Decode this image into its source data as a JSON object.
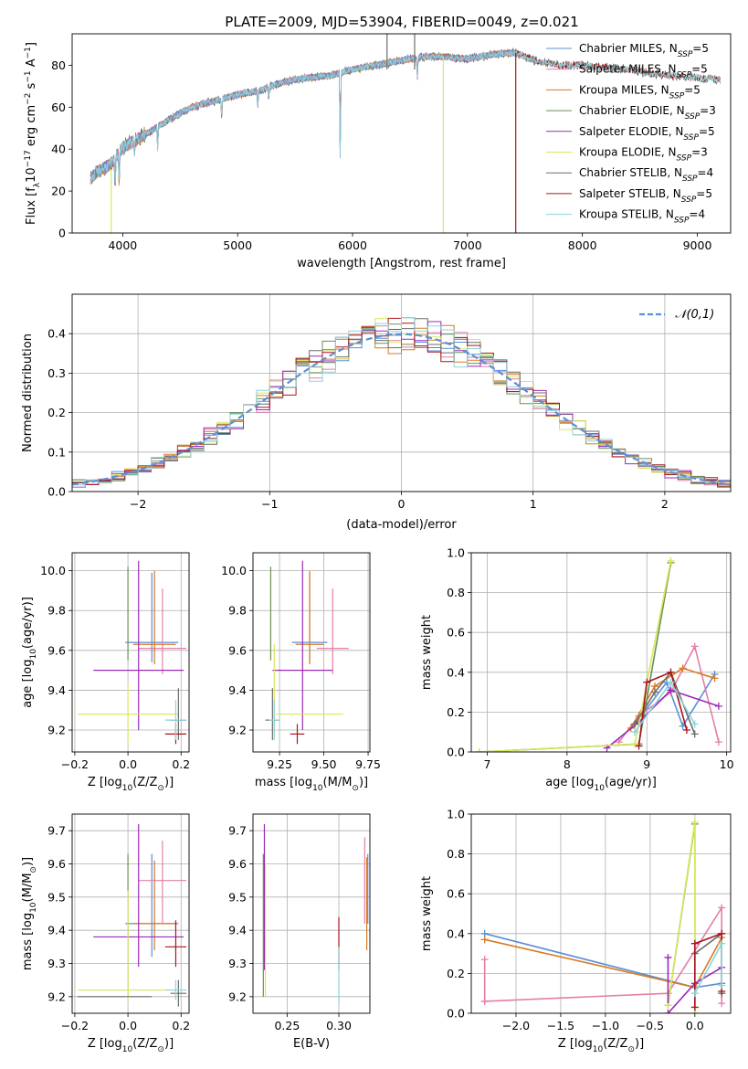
{
  "figure_title": "PLATE=2009, MJD=53904, FIBERID=0049, z=0.021",
  "colors": {
    "Chabrier MILES": "#5b8fd6",
    "Salpeter MILES": "#e47ea8",
    "Kroupa MILES": "#d67a25",
    "Chabrier ELODIE": "#6d8f56",
    "Salpeter ELODIE": "#9a2bb5",
    "Kroupa ELODIE": "#d7e85a",
    "Chabrier STELIB": "#6c6c6c",
    "Salpeter STELIB": "#a8161c",
    "Kroupa STELIB": "#8dd3da"
  },
  "chart_data": [
    {
      "id": "spectrum",
      "type": "line",
      "xlabel": "wavelength [Angstrom, rest frame]",
      "ylabel": "Flux [f$_\\lambda$10$^{-17}$ erg cm$^{-2}$ s$^{-1}$ A$^{-1}$]",
      "ylabel_parts": [
        "Flux [f",
        "λ",
        "10",
        "−17",
        " erg cm",
        "−2",
        " s",
        "−1",
        " A",
        "−1",
        "]"
      ],
      "xlim": [
        3560,
        9290
      ],
      "ylim": [
        0,
        95
      ],
      "xticks": [
        4000,
        5000,
        6000,
        7000,
        8000,
        9000
      ],
      "yticks": [
        0,
        20,
        40,
        60,
        80
      ],
      "grid": false,
      "legend_position": "right",
      "legend": [
        {
          "label": "Chabrier MILES, N",
          "sub": "SSP",
          "tail": "=5",
          "key": "Chabrier MILES"
        },
        {
          "label": "Salpeter MILES, N",
          "sub": "SSP",
          "tail": "=5",
          "key": "Salpeter MILES"
        },
        {
          "label": "Kroupa MILES, N",
          "sub": "SSP",
          "tail": "=5",
          "key": "Kroupa MILES"
        },
        {
          "label": "Chabrier ELODIE, N",
          "sub": "SSP",
          "tail": "=3",
          "key": "Chabrier ELODIE"
        },
        {
          "label": "Salpeter ELODIE, N",
          "sub": "SSP",
          "tail": "=5",
          "key": "Salpeter ELODIE"
        },
        {
          "label": "Kroupa ELODIE, N",
          "sub": "SSP",
          "tail": "=3",
          "key": "Kroupa ELODIE"
        },
        {
          "label": "Chabrier STELIB, N",
          "sub": "SSP",
          "tail": "=4",
          "key": "Chabrier STELIB"
        },
        {
          "label": "Salpeter STELIB, N",
          "sub": "SSP",
          "tail": "=5",
          "key": "Salpeter STELIB"
        },
        {
          "label": "Kroupa STELIB, N",
          "sub": "SSP",
          "tail": "=4",
          "key": "Kroupa STELIB"
        }
      ],
      "continuum": {
        "x": [
          3720,
          3800,
          3900,
          4000,
          4100,
          4200,
          4400,
          4600,
          4800,
          5000,
          5200,
          5400,
          5600,
          5800,
          6000,
          6200,
          6400,
          6600,
          6800,
          7000,
          7200,
          7400,
          7600,
          7800,
          8000,
          8200,
          8400,
          8600,
          8800,
          9000,
          9200
        ],
        "y": [
          26,
          30,
          33,
          41,
          44,
          47,
          54,
          60,
          63,
          66,
          68,
          72,
          74,
          75,
          78,
          80,
          82,
          84,
          84,
          83,
          85,
          86,
          82,
          80,
          80,
          79,
          78,
          76,
          75,
          74,
          73
        ]
      },
      "features": [
        {
          "x": 3934,
          "y": 21
        },
        {
          "x": 3969,
          "y": 23
        },
        {
          "x": 4102,
          "y": 38
        },
        {
          "x": 4304,
          "y": 40
        },
        {
          "x": 4861,
          "y": 56
        },
        {
          "x": 5175,
          "y": 60
        },
        {
          "x": 5270,
          "y": 64
        },
        {
          "x": 5893,
          "y": 32
        },
        {
          "x": 6563,
          "y": 73
        },
        {
          "x": 7600,
          "y": 82
        }
      ],
      "artifacts": [
        {
          "x": 3900,
          "y_top": 30,
          "y_bottom": 0,
          "key": "Kroupa ELODIE"
        },
        {
          "x": 6790,
          "y_top": 84,
          "y_bottom": 0,
          "key": "Kroupa ELODIE"
        },
        {
          "x": 7420,
          "y_top": 86,
          "y_bottom": 0,
          "key": "Salpeter STELIB"
        },
        {
          "x": 6540,
          "y_top": 95,
          "y_bottom": 78,
          "key": "Chabrier STELIB"
        },
        {
          "x": 6300,
          "y_top": 78,
          "y_bottom": 95,
          "key": "Chabrier STELIB"
        }
      ]
    },
    {
      "id": "residuals",
      "type": "step",
      "xlabel": "(data-model)/error",
      "ylabel": "Normed distribution",
      "xlim": [
        -2.5,
        2.5
      ],
      "ylim": [
        0,
        0.5
      ],
      "xticks": [
        -2,
        -1,
        0,
        1,
        2
      ],
      "xtick_labels": [
        "−2",
        "−1",
        "0",
        "1",
        "2"
      ],
      "yticks": [
        0.0,
        0.1,
        0.2,
        0.3,
        0.4
      ],
      "grid": true,
      "bin_width": 0.1,
      "legend_position": "top-right",
      "legend": [
        {
          "label": "𝒩(0,1)",
          "style": "dashed",
          "color": "#5b8fd6"
        }
      ]
    },
    {
      "id": "age_vs_Z",
      "type": "errorbar",
      "xlabel": "Z [log$_{10}$(Z/Z$_\\odot$)]",
      "ylabel": "age [log$_{10}$(age/yr)]",
      "xlim": [
        -0.21,
        0.23
      ],
      "ylim": [
        9.09,
        10.09
      ],
      "xticks": [
        -0.2,
        0.0,
        0.2
      ],
      "xtick_labels": [
        "−0.2",
        "0.0",
        "0.2"
      ],
      "yticks": [
        9.2,
        9.4,
        9.6,
        9.8,
        10.0
      ],
      "grid": true,
      "points": [
        {
          "key": "Chabrier MILES",
          "x": 0.09,
          "y": 9.64,
          "xerr": 0.1,
          "yerr_lo": 0.1,
          "yerr_hi": 0.35
        },
        {
          "key": "Salpeter MILES",
          "x": 0.13,
          "y": 9.61,
          "xerr": 0.09,
          "yerr_lo": 0.13,
          "yerr_hi": 0.3
        },
        {
          "key": "Kroupa MILES",
          "x": 0.1,
          "y": 9.63,
          "xerr": 0.08,
          "yerr_lo": 0.1,
          "yerr_hi": 0.37
        },
        {
          "key": "Chabrier ELODIE",
          "x": 0.0,
          "y": 9.65,
          "xerr": 0.0,
          "yerr_lo": 0.1,
          "yerr_hi": 0.37
        },
        {
          "key": "Salpeter ELODIE",
          "x": 0.04,
          "y": 9.5,
          "xerr": 0.17,
          "yerr_lo": 0.3,
          "yerr_hi": 0.55
        },
        {
          "key": "Kroupa ELODIE",
          "x": 0.0,
          "y": 9.28,
          "xerr": 0.19,
          "yerr_lo": 0.15,
          "yerr_hi": 0.15
        },
        {
          "key": "Chabrier STELIB",
          "x": 0.19,
          "y": 9.25,
          "xerr": 0.03,
          "yerr_lo": 0.1,
          "yerr_hi": 0.16
        },
        {
          "key": "Salpeter STELIB",
          "x": 0.18,
          "y": 9.18,
          "xerr": 0.04,
          "yerr_lo": 0.05,
          "yerr_hi": 0.05
        },
        {
          "key": "Kroupa STELIB",
          "x": 0.18,
          "y": 9.25,
          "xerr": 0.04,
          "yerr_lo": 0.1,
          "yerr_hi": 0.1
        }
      ]
    },
    {
      "id": "age_vs_mass",
      "type": "errorbar",
      "xlabel": "mass [log$_{10}$(M/M$_\\odot$)]",
      "ylabel": "",
      "xlim": [
        9.1,
        9.76
      ],
      "ylim": [
        9.09,
        10.09
      ],
      "xticks": [
        9.25,
        9.5,
        9.75
      ],
      "xtick_labels": [
        "9.25",
        "9.50",
        "9.75"
      ],
      "yticks": [
        9.2,
        9.4,
        9.6,
        9.8,
        10.0
      ],
      "grid": true,
      "points": [
        {
          "key": "Chabrier MILES",
          "x": 9.42,
          "y": 9.64,
          "xerr": 0.1,
          "yerr_lo": 0.1,
          "yerr_hi": 0.35
        },
        {
          "key": "Salpeter MILES",
          "x": 9.55,
          "y": 9.61,
          "xerr": 0.09,
          "yerr_lo": 0.13,
          "yerr_hi": 0.3
        },
        {
          "key": "Kroupa MILES",
          "x": 9.42,
          "y": 9.63,
          "xerr": 0.08,
          "yerr_lo": 0.1,
          "yerr_hi": 0.37
        },
        {
          "key": "Chabrier ELODIE",
          "x": 9.2,
          "y": 9.65,
          "xerr": 0.0,
          "yerr_lo": 0.1,
          "yerr_hi": 0.37
        },
        {
          "key": "Salpeter ELODIE",
          "x": 9.38,
          "y": 9.5,
          "xerr": 0.17,
          "yerr_lo": 0.3,
          "yerr_hi": 0.55
        },
        {
          "key": "Kroupa ELODIE",
          "x": 9.22,
          "y": 9.28,
          "xerr": 0.0,
          "yerr_lo": 0.1,
          "yerr_hi": 0.35
        },
        {
          "key": "Chabrier STELIB",
          "x": 9.21,
          "y": 9.25,
          "xerr": 0.04,
          "yerr_lo": 0.1,
          "yerr_hi": 0.16
        },
        {
          "key": "Salpeter STELIB",
          "x": 9.35,
          "y": 9.18,
          "xerr": 0.04,
          "yerr_lo": 0.05,
          "yerr_hi": 0.05
        },
        {
          "key": "Kroupa STELIB",
          "x": 9.22,
          "y": 9.25,
          "xerr": 0.03,
          "yerr_lo": 0.1,
          "yerr_hi": 0.1
        },
        {
          "key": "Kroupa ELODIE",
          "x": 9.42,
          "y": 9.28,
          "xerr": 0.19,
          "yerr_lo": 0.0,
          "yerr_hi": 0.0
        }
      ]
    },
    {
      "id": "weight_vs_age",
      "type": "line",
      "xlabel": "age [log$_{10}$(age/yr)]",
      "ylabel": "mass weight",
      "xlim": [
        6.8,
        10.05
      ],
      "ylim": [
        0,
        1.0
      ],
      "xticks": [
        7,
        8,
        9,
        10
      ],
      "yticks": [
        0.0,
        0.2,
        0.4,
        0.6,
        0.8,
        1.0
      ],
      "grid": true,
      "series": [
        {
          "key": "Chabrier MILES",
          "x": [
            8.85,
            9.25,
            9.45,
            9.85
          ],
          "y": [
            0.14,
            0.35,
            0.13,
            0.39
          ]
        },
        {
          "key": "Salpeter MILES",
          "x": [
            8.65,
            8.9,
            9.3,
            9.6,
            9.9
          ],
          "y": [
            0.05,
            0.18,
            0.3,
            0.53,
            0.05
          ]
        },
        {
          "key": "Kroupa MILES",
          "x": [
            8.8,
            9.1,
            9.45,
            9.85
          ],
          "y": [
            0.12,
            0.33,
            0.42,
            0.37
          ]
        },
        {
          "key": "Chabrier ELODIE",
          "x": [
            6.9,
            8.9,
            9.3
          ],
          "y": [
            0.0,
            0.04,
            0.95
          ]
        },
        {
          "key": "Salpeter ELODIE",
          "x": [
            8.5,
            8.9,
            9.3,
            9.9
          ],
          "y": [
            0.02,
            0.15,
            0.31,
            0.23
          ]
        },
        {
          "key": "Kroupa ELODIE",
          "x": [
            6.9,
            8.85,
            9.3
          ],
          "y": [
            0.0,
            0.04,
            0.96
          ]
        },
        {
          "key": "Chabrier STELIB",
          "x": [
            8.85,
            9.1,
            9.3,
            9.6
          ],
          "y": [
            0.14,
            0.3,
            0.4,
            0.09
          ]
        },
        {
          "key": "Salpeter STELIB",
          "x": [
            8.9,
            9.0,
            9.3,
            9.5
          ],
          "y": [
            0.03,
            0.35,
            0.4,
            0.11
          ]
        },
        {
          "key": "Kroupa STELIB",
          "x": [
            8.85,
            9.3,
            9.6
          ],
          "y": [
            0.1,
            0.35,
            0.14
          ]
        }
      ]
    },
    {
      "id": "mass_vs_Z",
      "type": "errorbar",
      "xlabel": "Z [log$_{10}$(Z/Z$_\\odot$)]",
      "ylabel": "mass [log$_{10}$(M/M$_\\odot$)]",
      "xlim": [
        -0.21,
        0.23
      ],
      "ylim": [
        9.15,
        9.75
      ],
      "xticks": [
        -0.2,
        0.0,
        0.2
      ],
      "xtick_labels": [
        "−0.2",
        "0.0",
        "0.2"
      ],
      "yticks": [
        9.2,
        9.3,
        9.4,
        9.5,
        9.6,
        9.7
      ],
      "grid": true,
      "points": [
        {
          "key": "Chabrier MILES",
          "x": 0.09,
          "y": 9.42,
          "xerr": 0.1,
          "yerr_lo": 0.1,
          "yerr_hi": 0.21
        },
        {
          "key": "Salpeter MILES",
          "x": 0.13,
          "y": 9.55,
          "xerr": 0.09,
          "yerr_lo": 0.13,
          "yerr_hi": 0.12
        },
        {
          "key": "Kroupa MILES",
          "x": 0.1,
          "y": 9.42,
          "xerr": 0.08,
          "yerr_lo": 0.08,
          "yerr_hi": 0.19
        },
        {
          "key": "Chabrier ELODIE",
          "x": 0.0,
          "y": 9.2,
          "xerr": 0.0,
          "yerr_lo": 0.0,
          "yerr_hi": 0.43
        },
        {
          "key": "Salpeter ELODIE",
          "x": 0.04,
          "y": 9.38,
          "xerr": 0.17,
          "yerr_lo": 0.09,
          "yerr_hi": 0.34
        },
        {
          "key": "Kroupa ELODIE",
          "x": 0.0,
          "y": 9.22,
          "xerr": 0.19,
          "yerr_lo": 0.03,
          "yerr_hi": 0.3
        },
        {
          "key": "Chabrier STELIB",
          "x": 0.19,
          "y": 9.21,
          "xerr": 0.03,
          "yerr_lo": 0.04,
          "yerr_hi": 0.04
        },
        {
          "key": "Salpeter STELIB",
          "x": 0.18,
          "y": 9.35,
          "xerr": 0.04,
          "yerr_lo": 0.06,
          "yerr_hi": 0.08
        },
        {
          "key": "Kroupa STELIB",
          "x": 0.18,
          "y": 9.22,
          "xerr": 0.04,
          "yerr_lo": 0.03,
          "yerr_hi": 0.03
        },
        {
          "key": "Chabrier STELIB",
          "x": -0.05,
          "y": 9.2,
          "xerr": 0.14,
          "yerr_lo": 0.0,
          "yerr_hi": 0.0
        }
      ]
    },
    {
      "id": "mass_vs_ebv",
      "type": "errorbar",
      "xlabel": "E(B-V)",
      "ylabel": "",
      "xlim": [
        0.217,
        0.33
      ],
      "ylim": [
        9.15,
        9.75
      ],
      "xticks": [
        0.25,
        0.3
      ],
      "xtick_labels": [
        "0.25",
        "0.30"
      ],
      "yticks": [
        9.2,
        9.3,
        9.4,
        9.5,
        9.6,
        9.7
      ],
      "grid": true,
      "points": [
        {
          "key": "Chabrier ELODIE",
          "x": 0.227,
          "y": 9.45,
          "xerr": 0.0,
          "yerr_lo": 0.25,
          "yerr_hi": 0.18
        },
        {
          "key": "Salpeter ELODIE",
          "x": 0.228,
          "y": 9.5,
          "xerr": 0.0,
          "yerr_lo": 0.22,
          "yerr_hi": 0.22
        },
        {
          "key": "Kroupa ELODIE",
          "x": 0.229,
          "y": 9.4,
          "xerr": 0.0,
          "yerr_lo": 0.2,
          "yerr_hi": 0.2
        },
        {
          "key": "Salpeter STELIB",
          "x": 0.3,
          "y": 9.36,
          "xerr": 0.0,
          "yerr_lo": 0.08,
          "yerr_hi": 0.08
        },
        {
          "key": "Kroupa STELIB",
          "x": 0.3,
          "y": 9.22,
          "xerr": 0.0,
          "yerr_lo": 0.04,
          "yerr_hi": 0.13
        },
        {
          "key": "Salpeter MILES",
          "x": 0.325,
          "y": 9.55,
          "xerr": 0.0,
          "yerr_lo": 0.13,
          "yerr_hi": 0.13
        },
        {
          "key": "Kroupa MILES",
          "x": 0.327,
          "y": 9.42,
          "xerr": 0.0,
          "yerr_lo": 0.08,
          "yerr_hi": 0.2
        },
        {
          "key": "Chabrier MILES",
          "x": 0.328,
          "y": 9.5,
          "xerr": 0.0,
          "yerr_lo": 0.08,
          "yerr_hi": 0.13
        }
      ]
    },
    {
      "id": "weight_vs_Z",
      "type": "line",
      "xlabel": "Z [log$_{10}$(Z/Z$_\\odot$)]",
      "ylabel": "mass weight",
      "xlim": [
        -2.5,
        0.4
      ],
      "ylim": [
        0,
        1.0
      ],
      "xticks": [
        -2.0,
        -1.5,
        -1.0,
        -0.5,
        0.0
      ],
      "xtick_labels": [
        "−2.0",
        "−1.5",
        "−1.0",
        "−0.5",
        "0.0"
      ],
      "yticks": [
        0.0,
        0.2,
        0.4,
        0.6,
        0.8,
        1.0
      ],
      "grid": true,
      "series": [
        {
          "key": "Chabrier MILES",
          "x": [
            -2.35,
            0.0,
            0.3
          ],
          "y": [
            0.4,
            0.13,
            0.15
          ]
        },
        {
          "key": "Salpeter MILES",
          "x": [
            -2.35,
            -0.3,
            0.3,
            0.3
          ],
          "y": [
            0.06,
            0.1,
            0.53,
            0.05
          ]
        },
        {
          "key": "Kroupa MILES",
          "x": [
            -2.35,
            0.0,
            0.3
          ],
          "y": [
            0.37,
            0.13,
            0.38
          ]
        },
        {
          "key": "Chabrier ELODIE",
          "x": [
            -0.3,
            0.0,
            0.0
          ],
          "y": [
            0.04,
            0.95,
            0.0
          ]
        },
        {
          "key": "Salpeter ELODIE",
          "x": [
            -0.3,
            0.0,
            0.3
          ],
          "y": [
            0.0,
            0.15,
            0.23
          ]
        },
        {
          "key": "Kroupa ELODIE",
          "x": [
            -0.3,
            0.0,
            0.0
          ],
          "y": [
            0.04,
            0.96,
            0.0
          ]
        },
        {
          "key": "Chabrier STELIB",
          "x": [
            0.0,
            0.3,
            0.3
          ],
          "y": [
            0.3,
            0.4,
            0.1
          ]
        },
        {
          "key": "Salpeter STELIB",
          "x": [
            0.0,
            0.0,
            0.3,
            0.3
          ],
          "y": [
            0.03,
            0.35,
            0.4,
            0.11
          ]
        },
        {
          "key": "Kroupa STELIB",
          "x": [
            0.0,
            0.3,
            0.3
          ],
          "y": [
            0.1,
            0.35,
            0.14
          ]
        }
      ],
      "markers_only": [
        {
          "key": "Salpeter MILES",
          "x": -2.35,
          "y": 0.27
        },
        {
          "key": "Salpeter ELODIE",
          "x": -0.3,
          "y": 0.28
        }
      ]
    }
  ]
}
